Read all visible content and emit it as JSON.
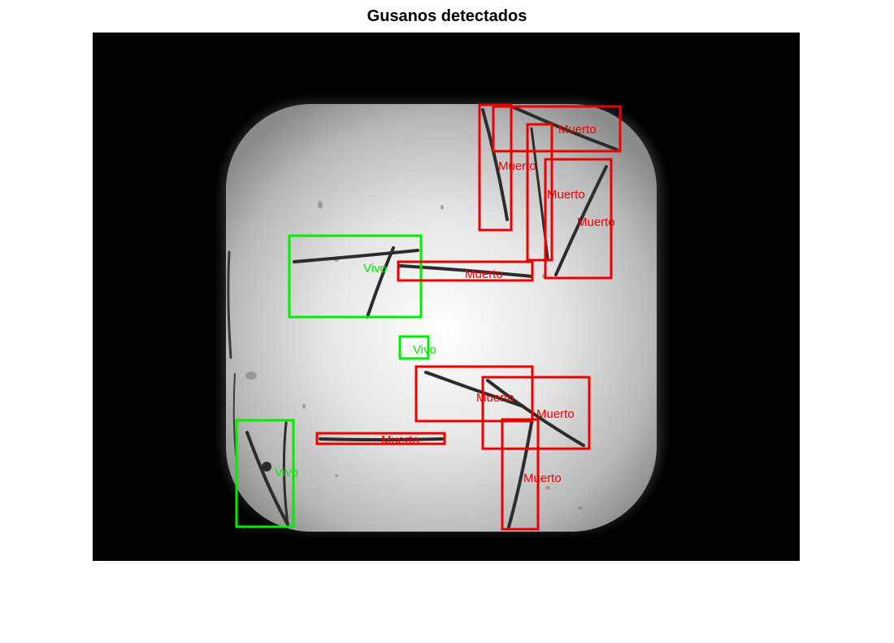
{
  "title": "Gusanos detectados",
  "legend_colors": {
    "vivo": "#00ee00",
    "muerto": "#ee0000"
  },
  "detections": [
    {
      "label": "Muerto",
      "status": "dead"
    },
    {
      "label": "Muerto",
      "status": "dead"
    },
    {
      "label": "Muerto",
      "status": "dead"
    },
    {
      "label": "Muerto",
      "status": "dead"
    },
    {
      "label": "Vivo",
      "status": "alive"
    },
    {
      "label": "Muerto",
      "status": "dead"
    },
    {
      "label": "Vivo",
      "status": "alive"
    },
    {
      "label": "Muerto",
      "status": "dead"
    },
    {
      "label": "Muerto",
      "status": "dead"
    },
    {
      "label": "Muerto",
      "status": "dead"
    },
    {
      "label": "Vivo",
      "status": "alive"
    },
    {
      "label": "Muerto",
      "status": "dead"
    }
  ]
}
